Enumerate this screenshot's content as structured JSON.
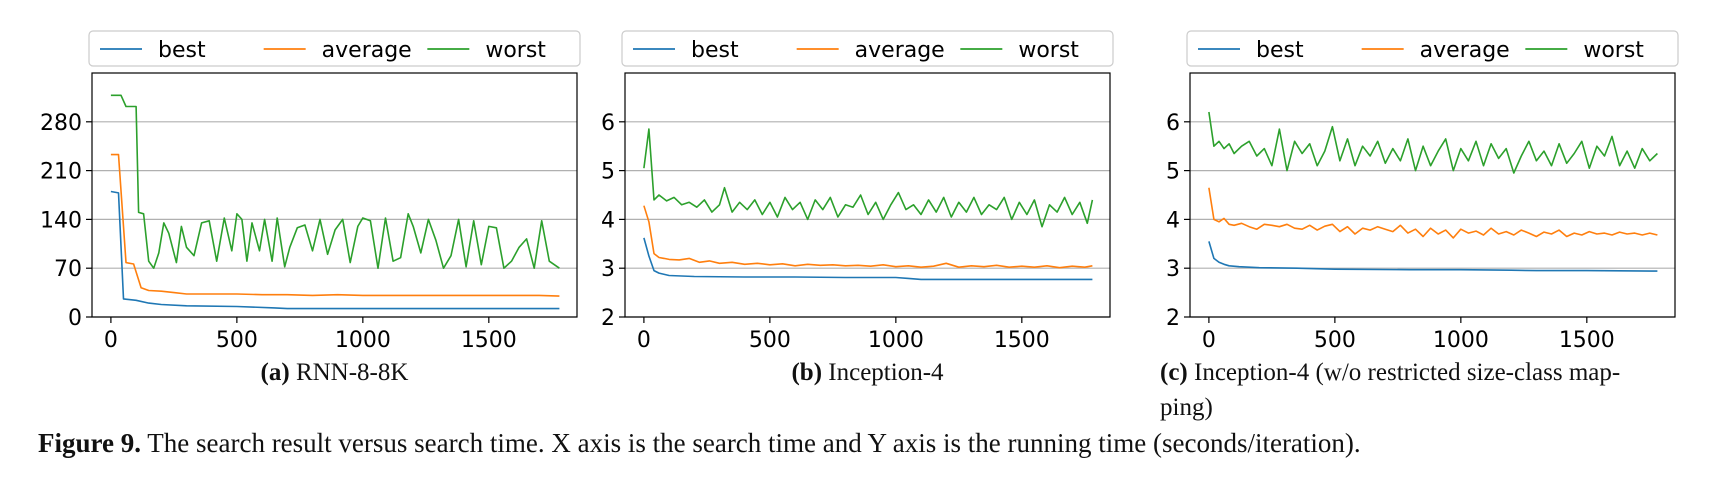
{
  "figure": {
    "label": "Figure 9.",
    "caption": "The search result versus search time. X axis is the search time and Y axis is the running time (seconds/iteration)."
  },
  "colors": {
    "best": "#1f77b4",
    "average": "#ff7f0e",
    "worst": "#2ca02c",
    "grid": "#b0b0b0"
  },
  "chart_data": [
    {
      "type": "line",
      "sublabel": "(a)",
      "caption": "RNN-8-8K",
      "caption_lines": [
        "RNN-8-8K"
      ],
      "xlim": [
        -75,
        1850
      ],
      "ylim": [
        0,
        350
      ],
      "xticks": [
        0,
        500,
        1000,
        1500
      ],
      "xtick_labels": [
        "0",
        "500",
        "1000",
        "1500"
      ],
      "yticks": [
        0,
        70,
        140,
        210,
        280
      ],
      "ytick_labels": [
        "0",
        "70",
        "140",
        "210",
        "280"
      ],
      "grid": "horizontal",
      "legend": [
        "best",
        "average",
        "worst"
      ],
      "legend_position": "top",
      "series": [
        {
          "name": "best",
          "x": [
            0,
            30,
            50,
            100,
            150,
            200,
            300,
            500,
            650,
            700,
            1000,
            1300,
            1500,
            1780
          ],
          "values": [
            180,
            178,
            26,
            24,
            20,
            18,
            16,
            15,
            13,
            12,
            12,
            12,
            12,
            12
          ]
        },
        {
          "name": "average",
          "x": [
            0,
            30,
            60,
            90,
            120,
            150,
            200,
            250,
            300,
            400,
            500,
            600,
            700,
            800,
            900,
            1000,
            1100,
            1200,
            1300,
            1400,
            1500,
            1600,
            1700,
            1780
          ],
          "values": [
            233,
            233,
            78,
            76,
            42,
            38,
            37,
            35,
            33,
            33,
            33,
            32,
            32,
            31,
            32,
            31,
            31,
            31,
            31,
            31,
            31,
            31,
            31,
            30
          ]
        },
        {
          "name": "worst",
          "x": [
            0,
            40,
            60,
            100,
            110,
            130,
            150,
            170,
            190,
            210,
            230,
            260,
            280,
            300,
            330,
            360,
            390,
            420,
            450,
            480,
            500,
            520,
            540,
            560,
            590,
            610,
            640,
            660,
            690,
            710,
            740,
            770,
            800,
            830,
            860,
            890,
            920,
            950,
            980,
            1000,
            1030,
            1060,
            1090,
            1120,
            1150,
            1180,
            1200,
            1230,
            1260,
            1290,
            1320,
            1350,
            1380,
            1410,
            1440,
            1470,
            1500,
            1530,
            1560,
            1590,
            1620,
            1650,
            1680,
            1710,
            1740,
            1780
          ],
          "values": [
            318,
            318,
            302,
            302,
            150,
            148,
            80,
            70,
            92,
            135,
            120,
            78,
            130,
            100,
            88,
            135,
            138,
            80,
            142,
            95,
            148,
            140,
            80,
            135,
            95,
            140,
            80,
            142,
            72,
            100,
            128,
            132,
            95,
            140,
            90,
            125,
            140,
            78,
            130,
            142,
            138,
            70,
            142,
            80,
            85,
            148,
            130,
            92,
            140,
            110,
            70,
            88,
            140,
            72,
            138,
            75,
            130,
            128,
            70,
            80,
            100,
            112,
            70,
            138,
            80,
            70
          ]
        }
      ]
    },
    {
      "type": "line",
      "sublabel": "(b)",
      "caption": "Inception-4",
      "caption_lines": [
        "Inception-4"
      ],
      "xlim": [
        -75,
        1850
      ],
      "ylim": [
        2,
        7
      ],
      "xticks": [
        0,
        500,
        1000,
        1500
      ],
      "xtick_labels": [
        "0",
        "500",
        "1000",
        "1500"
      ],
      "yticks": [
        2,
        3,
        4,
        5,
        6
      ],
      "ytick_labels": [
        "2",
        "3",
        "4",
        "5",
        "6"
      ],
      "grid": "horizontal",
      "legend": [
        "best",
        "average",
        "worst"
      ],
      "legend_position": "top",
      "series": [
        {
          "name": "best",
          "x": [
            0,
            20,
            40,
            60,
            100,
            150,
            200,
            400,
            600,
            800,
            1000,
            1050,
            1100,
            1300,
            1500,
            1780
          ],
          "values": [
            3.62,
            3.25,
            2.95,
            2.9,
            2.85,
            2.84,
            2.83,
            2.82,
            2.82,
            2.81,
            2.81,
            2.79,
            2.77,
            2.77,
            2.77,
            2.77
          ]
        },
        {
          "name": "average",
          "x": [
            0,
            20,
            40,
            60,
            80,
            100,
            140,
            180,
            220,
            260,
            300,
            350,
            400,
            450,
            500,
            550,
            600,
            650,
            700,
            750,
            800,
            850,
            900,
            950,
            1000,
            1050,
            1100,
            1150,
            1200,
            1250,
            1300,
            1350,
            1400,
            1450,
            1500,
            1550,
            1600,
            1650,
            1700,
            1750,
            1780
          ],
          "values": [
            4.28,
            3.95,
            3.3,
            3.22,
            3.2,
            3.18,
            3.17,
            3.2,
            3.12,
            3.15,
            3.1,
            3.12,
            3.08,
            3.1,
            3.07,
            3.09,
            3.05,
            3.08,
            3.06,
            3.07,
            3.05,
            3.06,
            3.04,
            3.07,
            3.03,
            3.05,
            3.02,
            3.04,
            3.1,
            3.02,
            3.05,
            3.03,
            3.06,
            3.02,
            3.04,
            3.02,
            3.05,
            3.01,
            3.04,
            3.02,
            3.05
          ]
        },
        {
          "name": "worst",
          "x": [
            0,
            20,
            40,
            60,
            90,
            120,
            150,
            180,
            210,
            240,
            270,
            300,
            320,
            350,
            380,
            410,
            440,
            470,
            500,
            530,
            560,
            590,
            620,
            650,
            680,
            710,
            740,
            770,
            800,
            830,
            860,
            890,
            920,
            950,
            980,
            1010,
            1040,
            1070,
            1100,
            1130,
            1160,
            1190,
            1220,
            1250,
            1280,
            1310,
            1340,
            1370,
            1400,
            1430,
            1460,
            1490,
            1520,
            1550,
            1580,
            1610,
            1640,
            1670,
            1700,
            1730,
            1760,
            1780
          ],
          "values": [
            5.05,
            5.85,
            4.4,
            4.5,
            4.38,
            4.45,
            4.3,
            4.35,
            4.25,
            4.4,
            4.15,
            4.3,
            4.65,
            4.15,
            4.35,
            4.2,
            4.4,
            4.1,
            4.35,
            4.05,
            4.45,
            4.2,
            4.35,
            4.0,
            4.4,
            4.2,
            4.45,
            4.05,
            4.3,
            4.25,
            4.5,
            4.1,
            4.35,
            4.0,
            4.3,
            4.55,
            4.2,
            4.3,
            4.1,
            4.4,
            4.15,
            4.45,
            4.05,
            4.35,
            4.15,
            4.45,
            4.1,
            4.3,
            4.2,
            4.45,
            4.0,
            4.35,
            4.1,
            4.4,
            3.85,
            4.3,
            4.15,
            4.45,
            4.1,
            4.35,
            3.92,
            4.4
          ]
        }
      ]
    },
    {
      "type": "line",
      "sublabel": "(c)",
      "caption": "Inception-4 (w/o restricted size-class mapping)",
      "caption_lines": [
        "Inception-4 (w/o restricted size-class map-",
        "ping)"
      ],
      "xlim": [
        -75,
        1850
      ],
      "ylim": [
        2,
        7
      ],
      "xticks": [
        0,
        500,
        1000,
        1500
      ],
      "xtick_labels": [
        "0",
        "500",
        "1000",
        "1500"
      ],
      "yticks": [
        2,
        3,
        4,
        5,
        6
      ],
      "ytick_labels": [
        "2",
        "3",
        "4",
        "5",
        "6"
      ],
      "grid": "horizontal",
      "legend": [
        "best",
        "average",
        "worst"
      ],
      "legend_position": "top",
      "series": [
        {
          "name": "best",
          "x": [
            0,
            20,
            40,
            60,
            80,
            120,
            200,
            350,
            500,
            800,
            1000,
            1200,
            1300,
            1500,
            1780
          ],
          "values": [
            3.55,
            3.2,
            3.12,
            3.08,
            3.05,
            3.03,
            3.01,
            3.0,
            2.98,
            2.97,
            2.97,
            2.96,
            2.95,
            2.95,
            2.94
          ]
        },
        {
          "name": "average",
          "x": [
            0,
            20,
            40,
            60,
            80,
            100,
            130,
            160,
            190,
            220,
            250,
            280,
            310,
            340,
            370,
            400,
            430,
            460,
            490,
            520,
            550,
            580,
            610,
            640,
            670,
            700,
            730,
            760,
            790,
            820,
            850,
            880,
            910,
            940,
            970,
            1000,
            1030,
            1060,
            1090,
            1120,
            1150,
            1180,
            1210,
            1240,
            1270,
            1300,
            1330,
            1360,
            1390,
            1420,
            1450,
            1480,
            1510,
            1540,
            1570,
            1600,
            1630,
            1660,
            1690,
            1720,
            1750,
            1780
          ],
          "values": [
            4.65,
            4.0,
            3.95,
            4.02,
            3.9,
            3.88,
            3.92,
            3.85,
            3.8,
            3.9,
            3.88,
            3.85,
            3.9,
            3.82,
            3.8,
            3.88,
            3.78,
            3.86,
            3.9,
            3.75,
            3.85,
            3.7,
            3.82,
            3.78,
            3.85,
            3.8,
            3.75,
            3.88,
            3.72,
            3.8,
            3.65,
            3.82,
            3.7,
            3.78,
            3.62,
            3.8,
            3.72,
            3.76,
            3.68,
            3.82,
            3.7,
            3.75,
            3.68,
            3.78,
            3.72,
            3.65,
            3.74,
            3.7,
            3.78,
            3.65,
            3.72,
            3.68,
            3.75,
            3.7,
            3.72,
            3.68,
            3.74,
            3.7,
            3.72,
            3.68,
            3.72,
            3.68
          ]
        },
        {
          "name": "worst",
          "x": [
            0,
            20,
            40,
            60,
            80,
            100,
            130,
            160,
            190,
            220,
            250,
            280,
            310,
            340,
            370,
            400,
            430,
            460,
            490,
            520,
            550,
            580,
            610,
            640,
            670,
            700,
            730,
            760,
            790,
            820,
            850,
            880,
            910,
            940,
            970,
            1000,
            1030,
            1060,
            1090,
            1120,
            1150,
            1180,
            1210,
            1240,
            1270,
            1300,
            1330,
            1360,
            1390,
            1420,
            1450,
            1480,
            1510,
            1540,
            1570,
            1600,
            1630,
            1660,
            1690,
            1720,
            1750,
            1780
          ],
          "values": [
            6.2,
            5.5,
            5.6,
            5.45,
            5.55,
            5.35,
            5.5,
            5.6,
            5.3,
            5.45,
            5.1,
            5.85,
            5.0,
            5.6,
            5.35,
            5.55,
            5.1,
            5.4,
            5.9,
            5.2,
            5.65,
            5.1,
            5.5,
            5.3,
            5.6,
            5.15,
            5.45,
            5.2,
            5.65,
            5.0,
            5.5,
            5.1,
            5.4,
            5.65,
            5.0,
            5.45,
            5.2,
            5.6,
            5.1,
            5.55,
            5.25,
            5.45,
            4.95,
            5.3,
            5.6,
            5.2,
            5.4,
            5.1,
            5.55,
            5.15,
            5.35,
            5.6,
            5.05,
            5.5,
            5.3,
            5.7,
            5.1,
            5.4,
            5.05,
            5.45,
            5.2,
            5.35
          ]
        }
      ]
    }
  ]
}
